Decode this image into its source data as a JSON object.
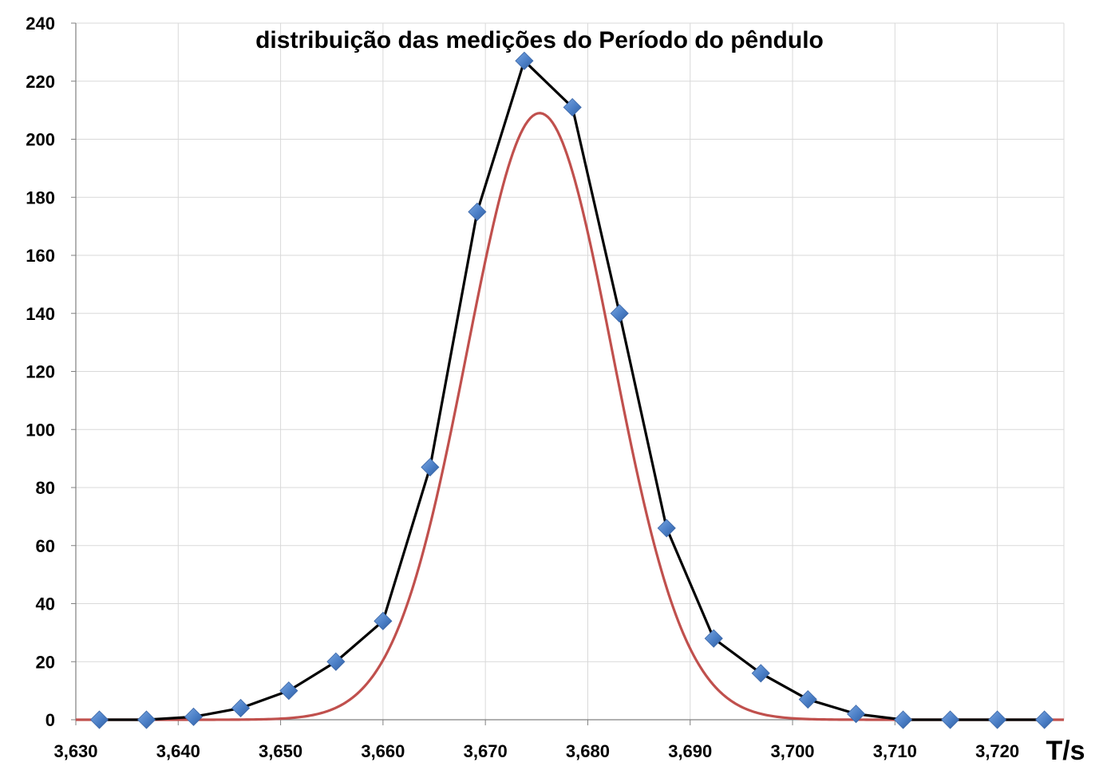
{
  "chart_data": {
    "type": "line",
    "title": "distribuição das medições do Período do pêndulo",
    "xlabel": "T/s",
    "ylabel": "",
    "xlim": [
      3.63,
      3.7265
    ],
    "ylim": [
      0,
      240
    ],
    "x_ticks": [
      "3,630",
      "3,640",
      "3,650",
      "3,660",
      "3,670",
      "3,680",
      "3,690",
      "3,700",
      "3,710",
      "3,720"
    ],
    "x_tick_values": [
      3.63,
      3.64,
      3.65,
      3.66,
      3.67,
      3.68,
      3.69,
      3.7,
      3.71,
      3.72
    ],
    "y_ticks": [
      "0",
      "20",
      "40",
      "60",
      "80",
      "100",
      "120",
      "140",
      "160",
      "180",
      "200",
      "220",
      "240"
    ],
    "y_tick_values": [
      0,
      20,
      40,
      60,
      80,
      100,
      120,
      140,
      160,
      180,
      200,
      220,
      240
    ],
    "grid": true,
    "legend": "none",
    "series": [
      {
        "kind": "measured",
        "color": "#000000",
        "marker_color": "#4a7ec6",
        "marker": "diamond",
        "x": [
          3.6323,
          3.6369,
          3.6415,
          3.6461,
          3.6508,
          3.6554,
          3.66,
          3.6646,
          3.6692,
          3.6738,
          3.6785,
          3.6831,
          3.6877,
          3.6923,
          3.6969,
          3.7015,
          3.7062,
          3.7108,
          3.7154,
          3.72,
          3.7246
        ],
        "values": [
          0,
          0,
          1,
          4,
          10,
          20,
          34,
          87,
          175,
          227,
          211,
          140,
          66,
          28,
          16,
          7,
          2,
          0,
          0,
          0,
          0
        ]
      },
      {
        "kind": "gaussian-fit",
        "color": "#c0504d",
        "mean": 3.6753,
        "sigma": 0.0071,
        "peak": 209,
        "x_range": [
          3.63,
          3.7265
        ]
      }
    ]
  }
}
